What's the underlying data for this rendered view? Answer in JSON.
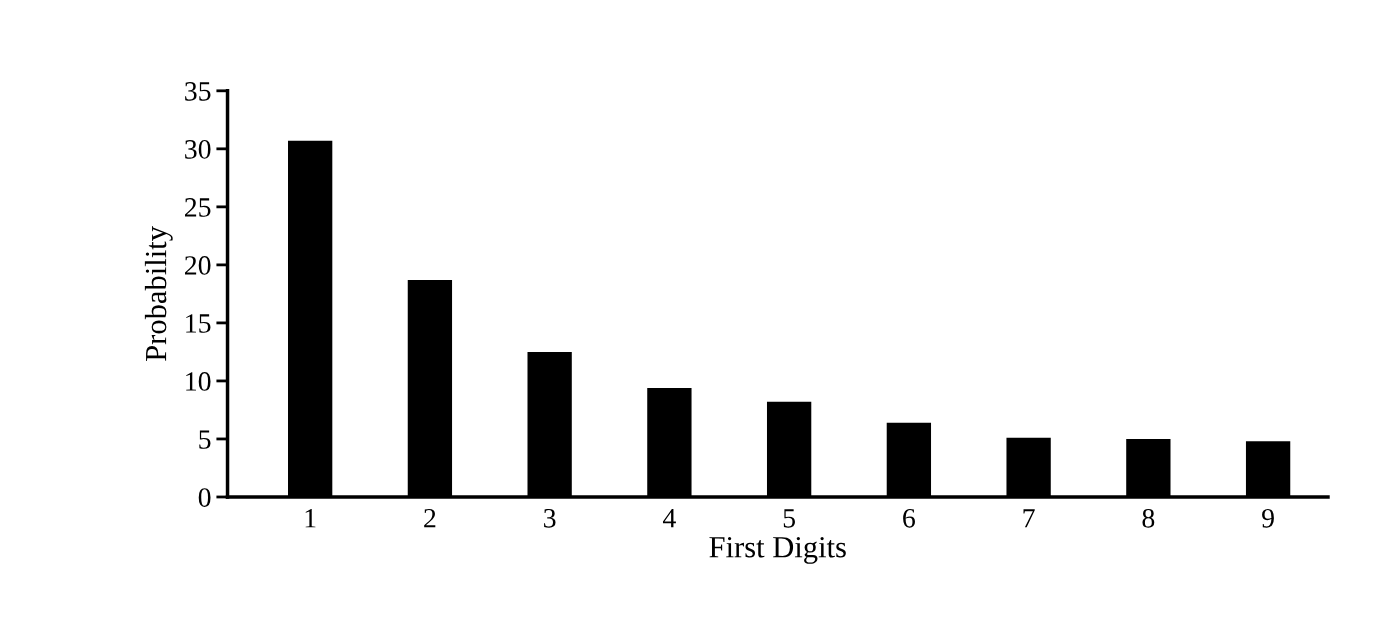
{
  "chart_data": {
    "type": "bar",
    "xlabel": "First Digits",
    "ylabel": "Probability",
    "categories": [
      "1",
      "2",
      "3",
      "4",
      "5",
      "6",
      "7",
      "8",
      "9"
    ],
    "values": [
      30.7,
      18.7,
      12.5,
      9.4,
      8.2,
      6.4,
      5.1,
      5.0,
      4.8
    ],
    "color": "#000000",
    "ylim": [
      0,
      35
    ],
    "yticks": [
      0,
      5,
      10,
      15,
      20,
      25,
      30,
      35
    ],
    "grid": false
  }
}
